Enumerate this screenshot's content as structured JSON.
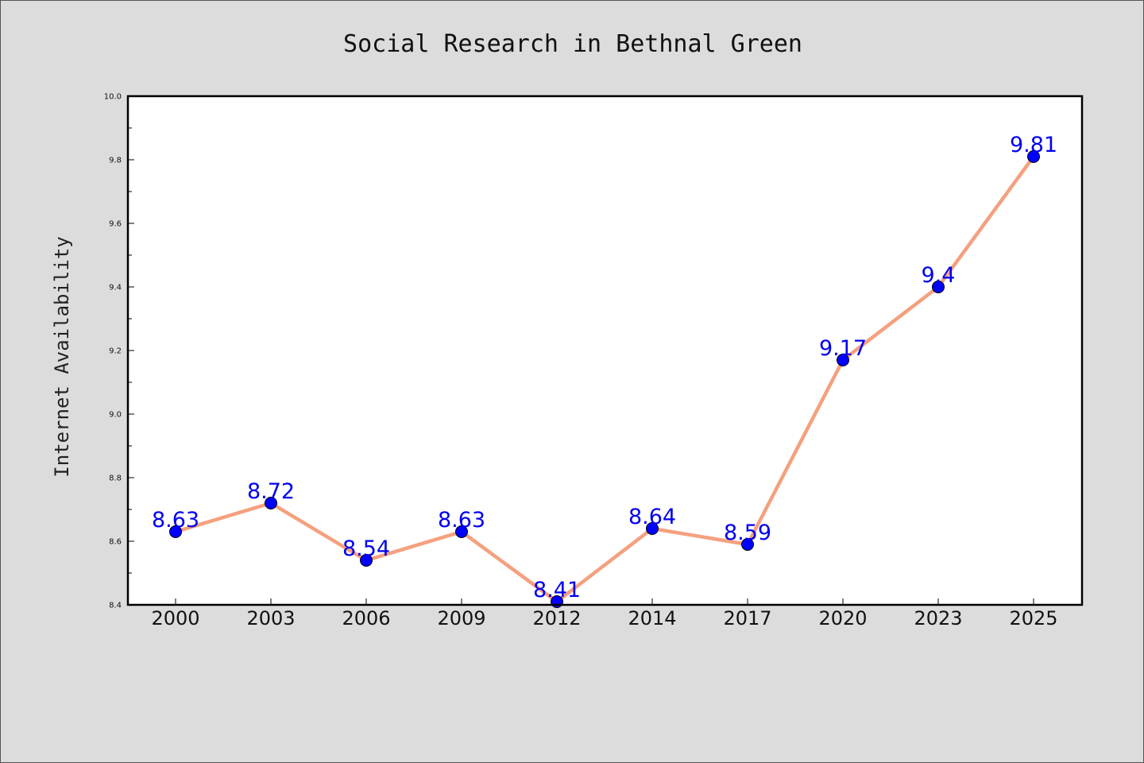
{
  "chart_data": {
    "type": "line",
    "title": "Social Research in Bethnal Green",
    "xlabel": "",
    "ylabel": "Internet Availability",
    "categories": [
      "2000",
      "2003",
      "2006",
      "2009",
      "2012",
      "2014",
      "2017",
      "2020",
      "2023",
      "2025"
    ],
    "series": [
      {
        "values": [
          8.63,
          8.72,
          8.54,
          8.63,
          8.41,
          8.64,
          8.59,
          9.17,
          9.4,
          9.81
        ],
        "data_labels": [
          "8.63",
          "8.72",
          "8.54",
          "8.63",
          "8.41",
          "8.64",
          "8.59",
          "9.17",
          "9.4",
          "9.81"
        ],
        "line_color": "#f5a07e",
        "marker_color": "#0000ff"
      }
    ],
    "ylim": [
      8.4,
      10.0
    ],
    "yticks": [
      "8.4",
      "8.6",
      "8.8",
      "9.0",
      "9.2",
      "9.4",
      "9.6",
      "9.8",
      "10.0"
    ],
    "grid": false,
    "legend": "none"
  },
  "colors": {
    "figure_background": "#dcdcdc",
    "plot_background": "#ffffff",
    "label_color": "#0000ee"
  }
}
